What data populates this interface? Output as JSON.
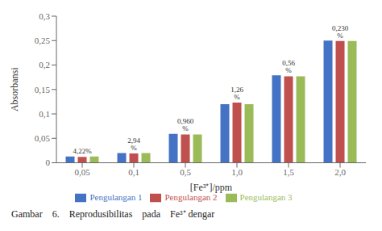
{
  "chart_data": {
    "type": "bar",
    "categories": [
      "0,05",
      "0,1",
      "0,5",
      "1,0",
      "1,5",
      "2,0"
    ],
    "series": [
      {
        "name": "Pengulangan 1",
        "color": "#4472C4",
        "values": [
          0.013,
          0.02,
          0.059,
          0.12,
          0.179,
          0.25
        ]
      },
      {
        "name": "Pengulangan 2",
        "color": "#C0504D",
        "values": [
          0.012,
          0.019,
          0.058,
          0.123,
          0.177,
          0.249
        ]
      },
      {
        "name": "Pengulangan 3",
        "color": "#9BBB59",
        "values": [
          0.013,
          0.02,
          0.058,
          0.12,
          0.177,
          0.249
        ]
      }
    ],
    "annotations": [
      "4,22%",
      "2,94 %",
      "0,960 %",
      "1,26 %",
      "0,56 %",
      "0,230 %"
    ],
    "xlabel": "[Fe³⁺]/ppm",
    "ylabel": "Absorbansi",
    "ylim": [
      0,
      0.3
    ],
    "yticks": [
      0,
      {
        "value": 0.05,
        "label": "0,05"
      },
      {
        "value": 0.1,
        "label": "0,1"
      },
      {
        "value": 0.15,
        "label": "0,15"
      },
      {
        "value": 0.2,
        "label": "0,2"
      },
      {
        "value": 0.25,
        "label": "0,25"
      },
      {
        "value": 0.3,
        "label": "0,3"
      }
    ],
    "grid": false,
    "legend": "bottom",
    "caption": "Gambar    6.    Reprodusibilitas    pada    Fe³⁺ dengar"
  }
}
